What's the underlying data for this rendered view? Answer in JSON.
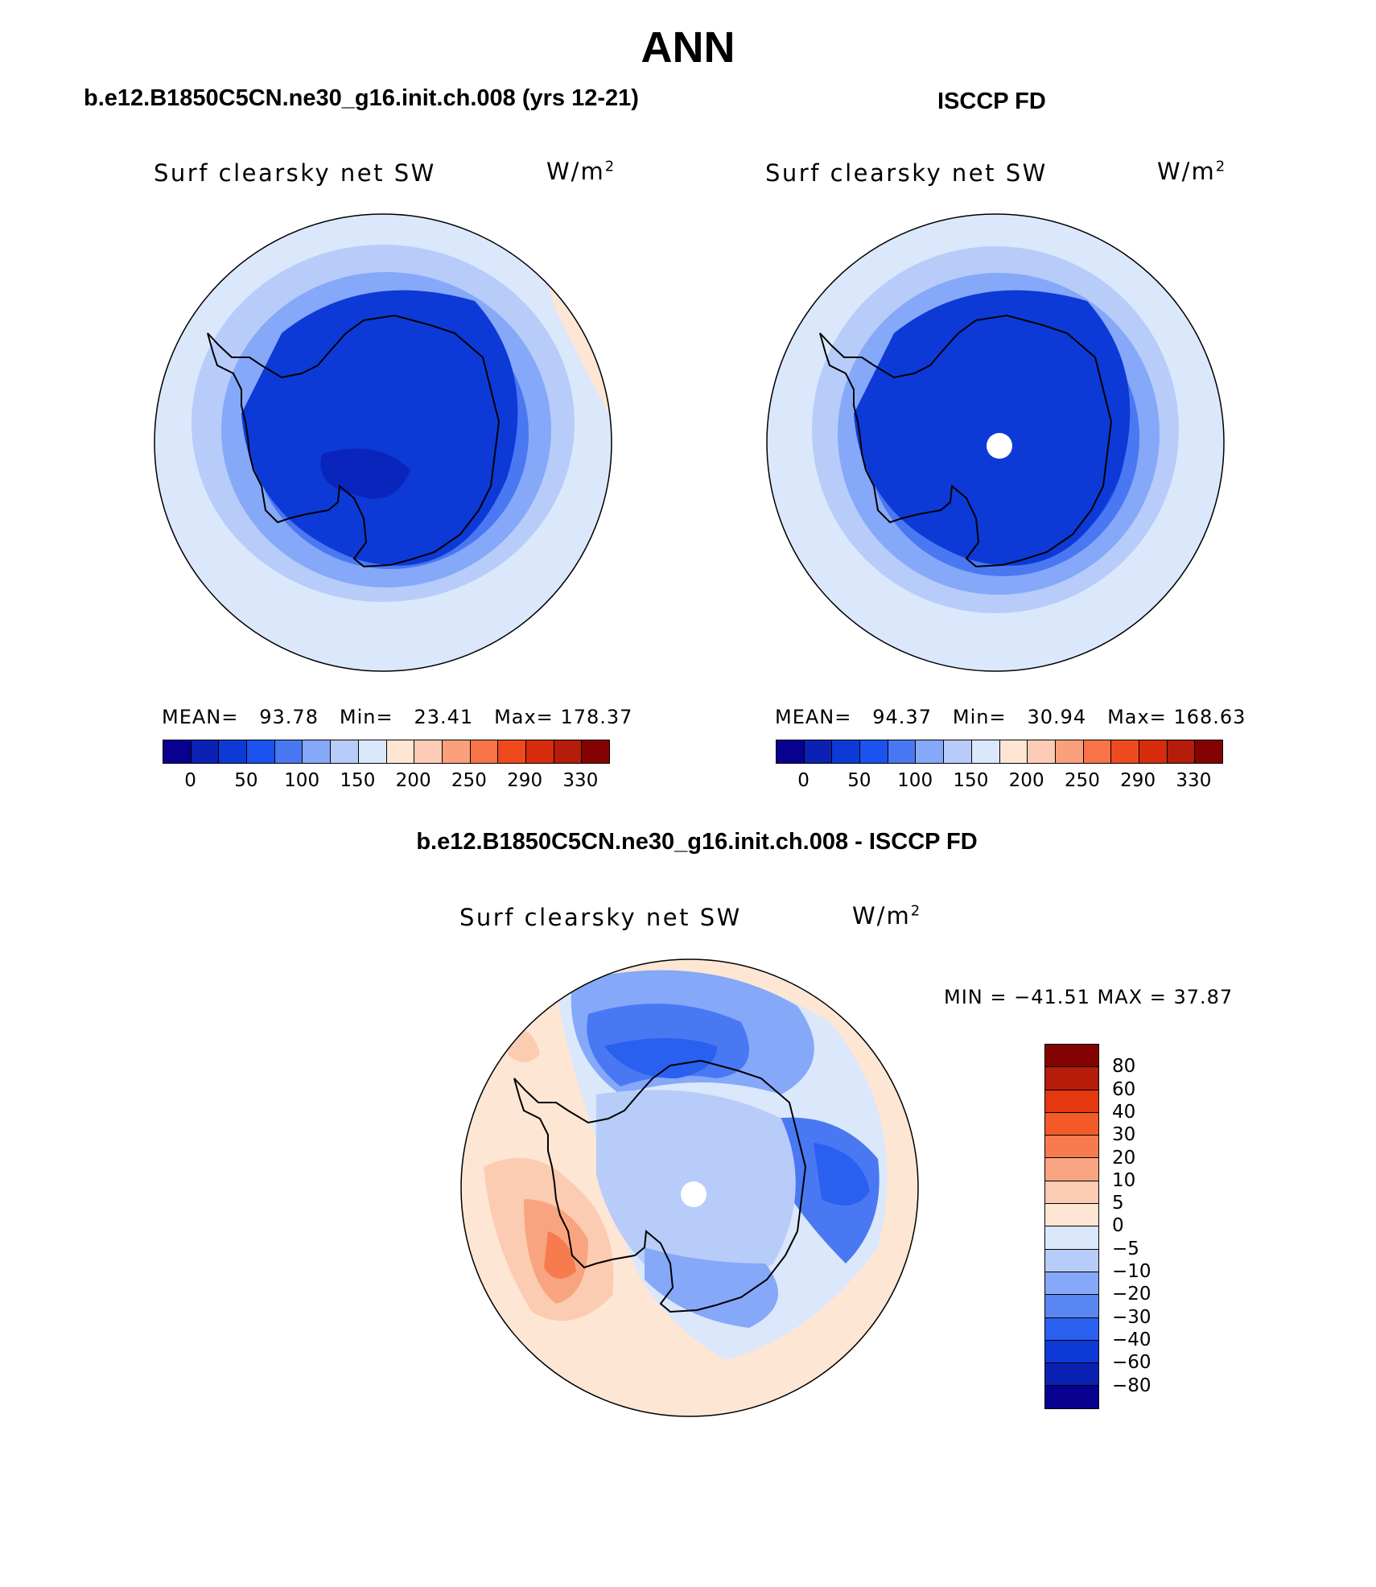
{
  "header": {
    "title": "ANN",
    "left_case": "b.e12.B1850C5CN.ne30_g16.init.ch.008 (yrs 12-21)",
    "right_case": "ISCCP FD",
    "diff_title": "b.e12.B1850C5CN.ne30_g16.init.ch.008 - ISCCP FD"
  },
  "panels": [
    {
      "variable": "Surf clearsky net SW",
      "units_base": "W/m",
      "units_exp": "2",
      "mean_label": "MEAN=",
      "mean": "93.78",
      "min_label": "Min=",
      "min": "23.41",
      "max_label": "Max=",
      "max": "178.37"
    },
    {
      "variable": "Surf clearsky net SW",
      "units_base": "W/m",
      "units_exp": "2",
      "mean_label": "MEAN=",
      "mean": "94.37",
      "min_label": "Min=",
      "min": "30.94",
      "max_label": "Max=",
      "max": "168.63"
    }
  ],
  "colorbar": {
    "colors": [
      "#08008f",
      "#0a21b4",
      "#0d3ad6",
      "#1c52f0",
      "#4a78f2",
      "#85a8f8",
      "#b7ccf9",
      "#dbe7fb",
      "#fde6d3",
      "#fccbb6",
      "#faa07c",
      "#f77448",
      "#ee4a1d",
      "#d62c0c",
      "#b51c0a",
      "#830202"
    ],
    "labels": [
      "0",
      "50",
      "100",
      "150",
      "200",
      "250",
      "290",
      "330"
    ]
  },
  "diff": {
    "variable": "Surf clearsky net SW",
    "units_base": "W/m",
    "units_exp": "2",
    "minmax": "MIN = −41.51 MAX =   37.87",
    "colors_top_to_bottom": [
      "#830202",
      "#b51c0a",
      "#e5380f",
      "#f45a27",
      "#f77b4e",
      "#f9a480",
      "#fbcbb2",
      "#fde6d3",
      "#dbe7fb",
      "#b7ccf9",
      "#85a8f8",
      "#5a86f4",
      "#2a60ef",
      "#0d3ad6",
      "#0a21b4",
      "#08008f"
    ],
    "labels": [
      "80",
      "60",
      "40",
      "30",
      "20",
      "10",
      "5",
      "0",
      "−5",
      "−10",
      "−20",
      "−30",
      "−40",
      "−60",
      "−80"
    ]
  },
  "icons": [
    "antarctica-coastline-icon"
  ]
}
